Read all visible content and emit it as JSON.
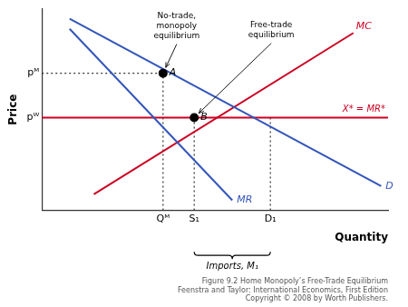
{
  "chart_data": {
    "type": "line",
    "title": "Figure 9.2 Home Monopoly’s Free-Trade Equilibrium\nFeenstra and Taylor: International Economics, First Edition\nCopyright © 2008 by Worth Publishers.",
    "xlabel": "Quantity",
    "ylabel": "Price",
    "xlim": [
      0,
      10
    ],
    "ylim": [
      0,
      10
    ],
    "xticks": [
      {
        "value": 3.5,
        "label": "Qᴹ"
      },
      {
        "value": 4.4,
        "label": "S₁"
      },
      {
        "value": 6.6,
        "label": "D₁"
      }
    ],
    "yticks": [
      {
        "value": 4.6,
        "label": "pᵂ"
      },
      {
        "value": 6.8,
        "label": "pᴹ"
      }
    ],
    "grid": false,
    "series": [
      {
        "name": "D",
        "type": "line",
        "line_style": "solid",
        "color": "#3355bb",
        "x": [
          0.8,
          9.8
        ],
        "values": [
          9.5,
          1.2
        ]
      },
      {
        "name": "MR",
        "type": "line",
        "line_style": "solid",
        "color": "#3355bb",
        "x": [
          0.8,
          5.5
        ],
        "values": [
          9.0,
          0.5
        ]
      },
      {
        "name": "MC",
        "type": "line",
        "line_style": "solid",
        "color": "#cc0022",
        "x": [
          1.5,
          9.0
        ],
        "values": [
          0.8,
          8.8
        ]
      },
      {
        "name": "X* = MR*",
        "type": "line",
        "line_style": "solid",
        "color": "#cc0022",
        "x": [
          0,
          10
        ],
        "values": [
          4.6,
          4.6
        ]
      },
      {
        "type": "line",
        "line_style": "dotted",
        "color": "#333333",
        "x": [
          3.5,
          3.5
        ],
        "values": [
          0,
          6.8
        ]
      },
      {
        "type": "line",
        "line_style": "dotted",
        "color": "#333333",
        "x": [
          0,
          3.5
        ],
        "values": [
          6.8,
          6.8
        ]
      },
      {
        "type": "line",
        "line_style": "dotted",
        "color": "#333333",
        "x": [
          4.4,
          4.4
        ],
        "values": [
          0,
          4.6
        ]
      },
      {
        "type": "line",
        "line_style": "dotted",
        "color": "#333333",
        "x": [
          6.6,
          6.6
        ],
        "values": [
          0,
          4.6
        ]
      },
      {
        "name": "A",
        "type": "scatter",
        "marker": "circle",
        "color": "#000000",
        "x": [
          3.5
        ],
        "values": [
          6.8
        ]
      },
      {
        "name": "B",
        "type": "scatter",
        "marker": "circle",
        "color": "#000000",
        "x": [
          4.4
        ],
        "values": [
          4.6
        ]
      }
    ],
    "annotations": [
      {
        "text": "No-trade,\nmonopoly\nequilibrium",
        "x": 3.5,
        "y": 6.8
      },
      {
        "text": "Free-trade\nequilibrium",
        "x": 4.4,
        "y": 4.6
      },
      {
        "text": "Imports, M₁",
        "x": [
          4.4,
          6.6
        ]
      }
    ]
  }
}
